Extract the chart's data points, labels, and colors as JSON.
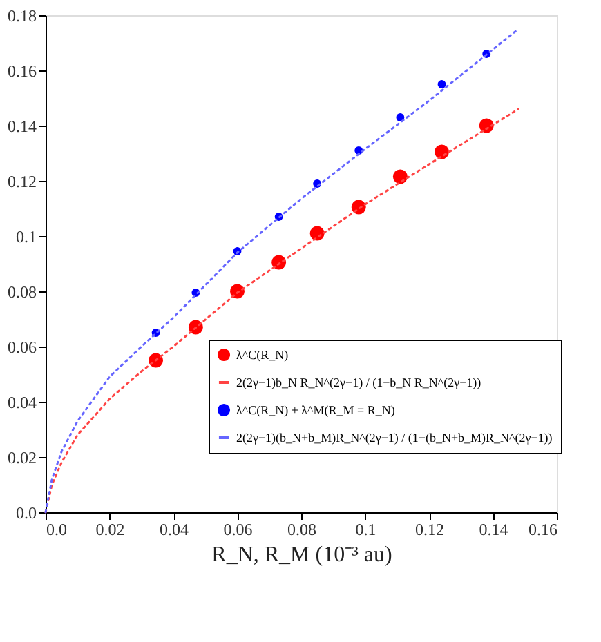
{
  "chart_data": {
    "type": "scatter",
    "xlabel": "R_N, R_M (10⁻³ au)",
    "xlim": [
      0,
      0.16
    ],
    "ylim": [
      0,
      0.18
    ],
    "xticks": [
      {
        "value": 0,
        "label": "0.0"
      },
      0.02,
      0.04,
      0.06,
      0.08,
      {
        "value": 0.1,
        "label": "0.1"
      },
      0.12,
      0.14,
      0.16
    ],
    "yticks": [
      {
        "value": 0,
        "label": "0.0"
      },
      0.02,
      0.04,
      0.06,
      0.08,
      {
        "value": 0.1,
        "label": "0.1"
      },
      0.12,
      0.14,
      0.16,
      0.18
    ],
    "grid": false,
    "legend": "bottom right",
    "series": [
      {
        "name": "λ^C(R_N)",
        "marker": "circle",
        "color": "#ff0000",
        "x": [
          0.0345,
          0.047,
          0.06,
          0.073,
          0.085,
          0.098,
          0.111,
          0.124,
          0.138
        ],
        "values": [
          0.055,
          0.067,
          0.08,
          0.0905,
          0.101,
          0.1105,
          0.1215,
          0.1305,
          0.14
        ]
      },
      {
        "name": "2(2γ−1)b_N R_N^(2γ−1) / (1−b_N R_N^(2γ−1))",
        "type": "line",
        "line_style": "dotted",
        "color": "#ff4444",
        "x": [
          0,
          0.002,
          0.005,
          0.01,
          0.02,
          0.03,
          0.04,
          0.06,
          0.08,
          0.1,
          0.12,
          0.148
        ],
        "values": [
          0,
          0.01,
          0.018,
          0.028,
          0.041,
          0.051,
          0.06,
          0.0795,
          0.0955,
          0.1115,
          0.126,
          0.146
        ]
      },
      {
        "name": "λ^C(R_N) + λ^M(R_M = R_N)",
        "marker": "circle",
        "color": "#0000ff",
        "x": [
          0.0345,
          0.047,
          0.06,
          0.073,
          0.085,
          0.098,
          0.111,
          0.124,
          0.138
        ],
        "values": [
          0.065,
          0.0795,
          0.0945,
          0.107,
          0.119,
          0.131,
          0.143,
          0.155,
          0.166
        ]
      },
      {
        "name": "2(2γ−1)(b_N+b_M)R_N^(2γ−1) / (1−(b_N+b_M)R_N^(2γ−1))",
        "type": "line",
        "line_style": "dotted",
        "color": "#6666ff",
        "x": [
          0,
          0.002,
          0.005,
          0.01,
          0.02,
          0.03,
          0.04,
          0.06,
          0.08,
          0.1,
          0.12,
          0.148
        ],
        "values": [
          0,
          0.012,
          0.022,
          0.033,
          0.049,
          0.06,
          0.0705,
          0.094,
          0.1135,
          0.1315,
          0.149,
          0.175
        ]
      }
    ]
  }
}
